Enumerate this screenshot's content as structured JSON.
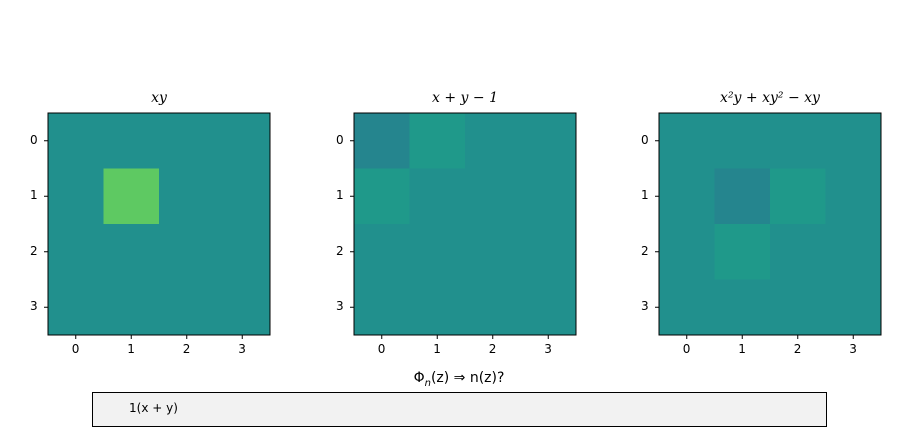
{
  "chart_data": [
    {
      "type": "heatmap",
      "title": "xy",
      "x_ticks": [
        "0",
        "1",
        "2",
        "3"
      ],
      "y_ticks": [
        "0",
        "1",
        "2",
        "3"
      ],
      "values": [
        [
          0,
          0,
          0,
          0
        ],
        [
          0,
          1,
          0,
          0
        ],
        [
          0,
          0,
          0,
          0
        ],
        [
          0,
          0,
          0,
          0
        ]
      ],
      "colormap": "viridis",
      "color_scale": {
        "0": "#21908d",
        "1": "#5ec962"
      }
    },
    {
      "type": "heatmap",
      "title": "x + y − 1",
      "x_ticks": [
        "0",
        "1",
        "2",
        "3"
      ],
      "y_ticks": [
        "0",
        "1",
        "2",
        "3"
      ],
      "values": [
        [
          -1,
          1,
          0,
          0
        ],
        [
          1,
          0,
          0,
          0
        ],
        [
          0,
          0,
          0,
          0
        ],
        [
          0,
          0,
          0,
          0
        ]
      ],
      "colormap": "viridis",
      "color_scale": {
        "-1": "#25858e",
        "0": "#21908d",
        "1": "#1f998a"
      }
    },
    {
      "type": "heatmap",
      "title": "x²y + xy² − xy",
      "x_ticks": [
        "0",
        "1",
        "2",
        "3"
      ],
      "y_ticks": [
        "0",
        "1",
        "2",
        "3"
      ],
      "values": [
        [
          0,
          0,
          0,
          0
        ],
        [
          0,
          -1,
          1,
          0
        ],
        [
          0,
          1,
          0,
          0
        ],
        [
          0,
          0,
          0,
          0
        ]
      ],
      "colormap": "viridis",
      "color_scale": {
        "-1": "#25858e",
        "0": "#21908d",
        "1": "#1f998a"
      }
    }
  ],
  "textbox": {
    "label": "Φn(z) ⇒ n(z)?",
    "label_parts": {
      "phi": "Φ",
      "sub": "n",
      "rest": "(z) ⇒ n(z)?"
    },
    "value": "1(x + y)"
  }
}
